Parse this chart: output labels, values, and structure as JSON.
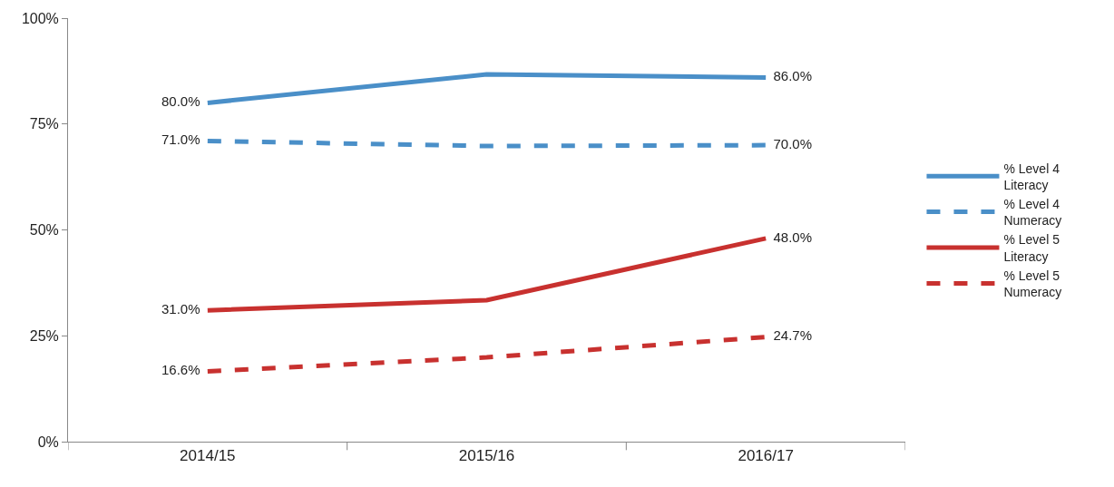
{
  "chart_data": {
    "type": "line",
    "categories": [
      "2014/15",
      "2015/16",
      "2016/17"
    ],
    "series": [
      {
        "name": "% Level 4 Literacy",
        "color": "#4a8fc8",
        "line_style": "solid",
        "values": [
          80.0,
          86.7,
          86.0
        ],
        "value_labels": [
          "80.0%",
          null,
          "86.0%"
        ]
      },
      {
        "name": "% Level 4 Numeracy",
        "color": "#4a8fc8",
        "line_style": "dashed",
        "values": [
          71.0,
          69.8,
          70.0
        ],
        "value_labels": [
          "71.0%",
          null,
          "70.0%"
        ]
      },
      {
        "name": "% Level 5 Literacy",
        "color": "#c8312f",
        "line_style": "solid",
        "values": [
          31.0,
          33.4,
          48.0
        ],
        "value_labels": [
          "31.0%",
          null,
          "48.0%"
        ]
      },
      {
        "name": "% Level 5 Numeracy",
        "color": "#c8312f",
        "line_style": "dashed",
        "values": [
          16.6,
          19.9,
          24.7
        ],
        "value_labels": [
          "16.6%",
          null,
          "24.7%"
        ]
      }
    ],
    "ylim": [
      0,
      100
    ],
    "yticks": [
      {
        "value": 0,
        "label": "0%"
      },
      {
        "value": 25,
        "label": "25%"
      },
      {
        "value": 50,
        "label": "50%"
      },
      {
        "value": 75,
        "label": "75%"
      },
      {
        "value": 100,
        "label": "100%"
      }
    ],
    "legend": "right",
    "marker": "none"
  }
}
